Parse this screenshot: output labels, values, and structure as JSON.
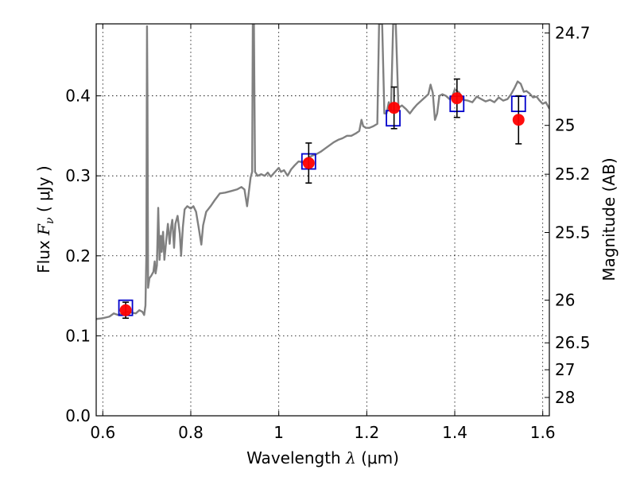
{
  "chart_data": {
    "type": "line",
    "title": "",
    "xlabel": "Wavelength λ (μm)",
    "xlabel_parts": {
      "prefix": "Wavelength ",
      "symbol": "λ",
      "suffix": " (μm)"
    },
    "ylabel": "Flux Fν ( μJy )",
    "ylabel_parts": {
      "prefix": "Flux ",
      "symbol": "F",
      "sub": "ν",
      "suffix": " ( μJy )"
    },
    "y2label": "Magnitude (AB)",
    "xlim": [
      0.585,
      1.615
    ],
    "ylim": [
      0.0,
      0.49
    ],
    "grid": true,
    "x_ticks": [
      {
        "value": 0.6,
        "label": "0.6"
      },
      {
        "value": 0.8,
        "label": "0.8"
      },
      {
        "value": 1.0,
        "label": "1"
      },
      {
        "value": 1.2,
        "label": "1.2"
      },
      {
        "value": 1.4,
        "label": "1.4"
      },
      {
        "value": 1.6,
        "label": "1.6"
      }
    ],
    "y_ticks": [
      {
        "value": 0.0,
        "label": "0.0"
      },
      {
        "value": 0.1,
        "label": "0.1"
      },
      {
        "value": 0.2,
        "label": "0.2"
      },
      {
        "value": 0.3,
        "label": "0.3"
      },
      {
        "value": 0.4,
        "label": "0.4"
      }
    ],
    "y2_ticks": [
      {
        "mag": 24.7,
        "label": "24.7"
      },
      {
        "mag": 25,
        "label": "25"
      },
      {
        "mag": 25.2,
        "label": "25.2"
      },
      {
        "mag": 25.5,
        "label": "25.5"
      },
      {
        "mag": 26,
        "label": "26"
      },
      {
        "mag": 26.5,
        "label": "26.5"
      },
      {
        "mag": 27,
        "label": "27"
      },
      {
        "mag": 28,
        "label": "28"
      }
    ],
    "series": [
      {
        "name": "model spectrum",
        "kind": "line",
        "color": "#808080",
        "points": [
          [
            0.585,
            0.121
          ],
          [
            0.6,
            0.122
          ],
          [
            0.615,
            0.124
          ],
          [
            0.625,
            0.128
          ],
          [
            0.635,
            0.126
          ],
          [
            0.645,
            0.128
          ],
          [
            0.655,
            0.13
          ],
          [
            0.665,
            0.129
          ],
          [
            0.675,
            0.128
          ],
          [
            0.683,
            0.132
          ],
          [
            0.69,
            0.13
          ],
          [
            0.694,
            0.126
          ],
          [
            0.697,
            0.138
          ],
          [
            0.699,
            0.2
          ],
          [
            0.7005,
            0.487
          ],
          [
            0.7015,
            0.4
          ],
          [
            0.703,
            0.16
          ],
          [
            0.706,
            0.172
          ],
          [
            0.71,
            0.175
          ],
          [
            0.715,
            0.18
          ],
          [
            0.718,
            0.193
          ],
          [
            0.72,
            0.178
          ],
          [
            0.723,
            0.188
          ],
          [
            0.726,
            0.26
          ],
          [
            0.729,
            0.195
          ],
          [
            0.732,
            0.225
          ],
          [
            0.734,
            0.205
          ],
          [
            0.737,
            0.23
          ],
          [
            0.74,
            0.195
          ],
          [
            0.744,
            0.218
          ],
          [
            0.748,
            0.24
          ],
          [
            0.752,
            0.215
          ],
          [
            0.755,
            0.235
          ],
          [
            0.758,
            0.245
          ],
          [
            0.762,
            0.21
          ],
          [
            0.765,
            0.24
          ],
          [
            0.77,
            0.25
          ],
          [
            0.775,
            0.228
          ],
          [
            0.778,
            0.2
          ],
          [
            0.782,
            0.236
          ],
          [
            0.786,
            0.258
          ],
          [
            0.792,
            0.262
          ],
          [
            0.8,
            0.259
          ],
          [
            0.806,
            0.262
          ],
          [
            0.812,
            0.255
          ],
          [
            0.818,
            0.235
          ],
          [
            0.824,
            0.214
          ],
          [
            0.828,
            0.238
          ],
          [
            0.835,
            0.255
          ],
          [
            0.845,
            0.262
          ],
          [
            0.855,
            0.27
          ],
          [
            0.866,
            0.278
          ],
          [
            0.878,
            0.279
          ],
          [
            0.892,
            0.281
          ],
          [
            0.905,
            0.283
          ],
          [
            0.915,
            0.286
          ],
          [
            0.922,
            0.283
          ],
          [
            0.928,
            0.262
          ],
          [
            0.932,
            0.28
          ],
          [
            0.936,
            0.298
          ],
          [
            0.9395,
            0.305
          ],
          [
            0.941,
            0.49
          ],
          [
            0.9435,
            0.49
          ],
          [
            0.946,
            0.305
          ],
          [
            0.952,
            0.3
          ],
          [
            0.96,
            0.302
          ],
          [
            0.968,
            0.3
          ],
          [
            0.975,
            0.304
          ],
          [
            0.982,
            0.299
          ],
          [
            0.99,
            0.304
          ],
          [
            1.0,
            0.31
          ],
          [
            1.005,
            0.305
          ],
          [
            1.012,
            0.307
          ],
          [
            1.02,
            0.3
          ],
          [
            1.028,
            0.308
          ],
          [
            1.036,
            0.313
          ],
          [
            1.045,
            0.318
          ],
          [
            1.055,
            0.317
          ],
          [
            1.065,
            0.322
          ],
          [
            1.075,
            0.325
          ],
          [
            1.085,
            0.327
          ],
          [
            1.095,
            0.33
          ],
          [
            1.105,
            0.334
          ],
          [
            1.115,
            0.338
          ],
          [
            1.125,
            0.342
          ],
          [
            1.135,
            0.345
          ],
          [
            1.145,
            0.347
          ],
          [
            1.155,
            0.35
          ],
          [
            1.165,
            0.35
          ],
          [
            1.175,
            0.353
          ],
          [
            1.183,
            0.356
          ],
          [
            1.188,
            0.37
          ],
          [
            1.192,
            0.362
          ],
          [
            1.198,
            0.36
          ],
          [
            1.206,
            0.36
          ],
          [
            1.215,
            0.362
          ],
          [
            1.224,
            0.365
          ],
          [
            1.228,
            0.49
          ],
          [
            1.235,
            0.49
          ],
          [
            1.24,
            0.378
          ],
          [
            1.245,
            0.378
          ],
          [
            1.25,
            0.392
          ],
          [
            1.255,
            0.382
          ],
          [
            1.26,
            0.49
          ],
          [
            1.266,
            0.49
          ],
          [
            1.272,
            0.385
          ],
          [
            1.28,
            0.388
          ],
          [
            1.29,
            0.383
          ],
          [
            1.298,
            0.378
          ],
          [
            1.306,
            0.384
          ],
          [
            1.314,
            0.389
          ],
          [
            1.322,
            0.393
          ],
          [
            1.332,
            0.398
          ],
          [
            1.34,
            0.402
          ],
          [
            1.345,
            0.414
          ],
          [
            1.35,
            0.404
          ],
          [
            1.355,
            0.37
          ],
          [
            1.36,
            0.378
          ],
          [
            1.365,
            0.4
          ],
          [
            1.372,
            0.402
          ],
          [
            1.38,
            0.4
          ],
          [
            1.388,
            0.396
          ],
          [
            1.395,
            0.4
          ],
          [
            1.4,
            0.408
          ],
          [
            1.41,
            0.404
          ],
          [
            1.42,
            0.395
          ],
          [
            1.43,
            0.394
          ],
          [
            1.44,
            0.392
          ],
          [
            1.45,
            0.399
          ],
          [
            1.46,
            0.396
          ],
          [
            1.47,
            0.393
          ],
          [
            1.48,
            0.395
          ],
          [
            1.49,
            0.392
          ],
          [
            1.5,
            0.398
          ],
          [
            1.51,
            0.394
          ],
          [
            1.52,
            0.396
          ],
          [
            1.528,
            0.402
          ],
          [
            1.536,
            0.41
          ],
          [
            1.543,
            0.418
          ],
          [
            1.55,
            0.415
          ],
          [
            1.557,
            0.405
          ],
          [
            1.563,
            0.406
          ],
          [
            1.57,
            0.403
          ],
          [
            1.578,
            0.398
          ],
          [
            1.586,
            0.399
          ],
          [
            1.593,
            0.394
          ],
          [
            1.6,
            0.39
          ],
          [
            1.607,
            0.392
          ],
          [
            1.615,
            0.384
          ]
        ]
      },
      {
        "name": "model photometry",
        "kind": "square-marker",
        "color": "#0000cc",
        "points": [
          [
            0.652,
            0.135
          ],
          [
            1.068,
            0.318
          ],
          [
            1.26,
            0.372
          ],
          [
            1.405,
            0.39
          ],
          [
            1.545,
            0.39
          ]
        ]
      },
      {
        "name": "observed photometry",
        "kind": "circle-marker-with-errorbars",
        "color": "#ff0000",
        "points": [
          {
            "x": 0.652,
            "y": 0.132,
            "err_low": 0.01,
            "err_high": 0.01
          },
          {
            "x": 1.068,
            "y": 0.316,
            "err_low": 0.025,
            "err_high": 0.025
          },
          {
            "x": 1.262,
            "y": 0.385,
            "err_low": 0.026,
            "err_high": 0.026
          },
          {
            "x": 1.405,
            "y": 0.397,
            "err_low": 0.024,
            "err_high": 0.024
          },
          {
            "x": 1.545,
            "y": 0.37,
            "err_low": 0.03,
            "err_high": 0.03
          }
        ]
      }
    ]
  }
}
